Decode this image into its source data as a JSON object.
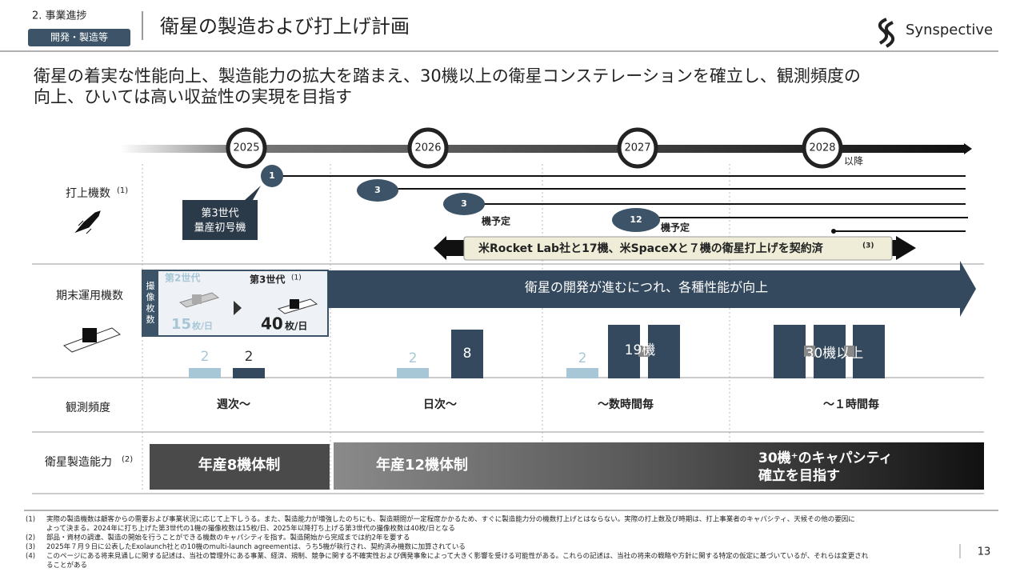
{
  "header": {
    "section": "2. 事業進捗",
    "tag": "開発・製造等",
    "title": "衛星の製造および打上げ計画",
    "logo": "Synspective"
  },
  "lead": [
    "衛星の着実な性能向上、製造能力の拡大を踏まえ、30機以上の衛星コンステレーションを確立し、観測頻度の",
    "向上、ひいては高い収益性の実現を目指す"
  ],
  "timeline": {
    "years": [
      "2025",
      "2026",
      "2027",
      "2028"
    ],
    "after": "以降"
  },
  "rows": {
    "launch": {
      "label": "打上機数",
      "note": "(1)"
    },
    "operating": {
      "label": "期末運用機数"
    },
    "frequency": {
      "label": "観測頻度"
    },
    "capacity": {
      "label": "衛星製造能力",
      "note": "(2)"
    }
  },
  "launch": {
    "bubbles": [
      "1",
      "3",
      "3",
      "12"
    ],
    "callout": [
      "第3世代",
      "量産初号機"
    ],
    "planned": [
      "機予定",
      "機予定"
    ],
    "contract": "米Rocket Lab社と17機、米SpaceXと７機の衛星打上げを契約済",
    "contract_note": "(3)"
  },
  "operating": {
    "box_label": "撮像枚数",
    "gen2": "第2世代",
    "gen2_rate": "15",
    "gen3": "第3世代",
    "gen3_note": "(1)",
    "gen3_rate": "40",
    "unit": "枚/日",
    "arrow": "衛星の開発が進むにつれ、各種性能が向上",
    "bars": [
      "2",
      "2",
      "2",
      "8",
      "2",
      "19機",
      "30機以上"
    ]
  },
  "frequency": [
    "週次～",
    "日次～",
    "～数時間毎",
    "～１時間毎"
  ],
  "capacity": [
    "年産8機体制",
    "年産12機体制",
    [
      "30機⁺のキャパシティ",
      "確立を目指す"
    ]
  ],
  "footnotes": [
    {
      "mark": "(1)",
      "text": [
        "実際の製造機数は顧客からの需要および事業状況に応じて上下しうる。また、製造能力が増強したのちにも、製造期間が一定程度かかるため、すぐに製造能力分の機数打上げとはならない。実際の打上数及び時期は、打上事業者のキャパシティ、天候その他の要因に",
        "よって決まる。2024年に打ち上げた第3世代の1機の撮像枚数は15枚/日、2025年以降打ち上げる第3世代の撮像枚数は40枚/日となる"
      ]
    },
    {
      "mark": "(2)",
      "text": [
        "部品・資材の調達、製造の開始を行うことができる機数のキャパシティを指す。製造開始から完成までは約2年を要する"
      ]
    },
    {
      "mark": "(3)",
      "text": [
        "2025年７月９日に公表したExolaunch社との10機のmulti-launch agreementは、うち5機が執行され、契約済み機数に加算されている"
      ]
    },
    {
      "mark": "(4)",
      "text": [
        "このページにある将来見通しに関する記述は、当社の管理外にある事業、経済、規制、競争に関する不確実性および偶発事象によって大きく影響を受ける可能性がある。これらの記述は、当社の将来の戦略や方針に関する特定の仮定に基づいているが、それらは変更され",
        "ることがある"
      ]
    }
  ],
  "page": "13"
}
